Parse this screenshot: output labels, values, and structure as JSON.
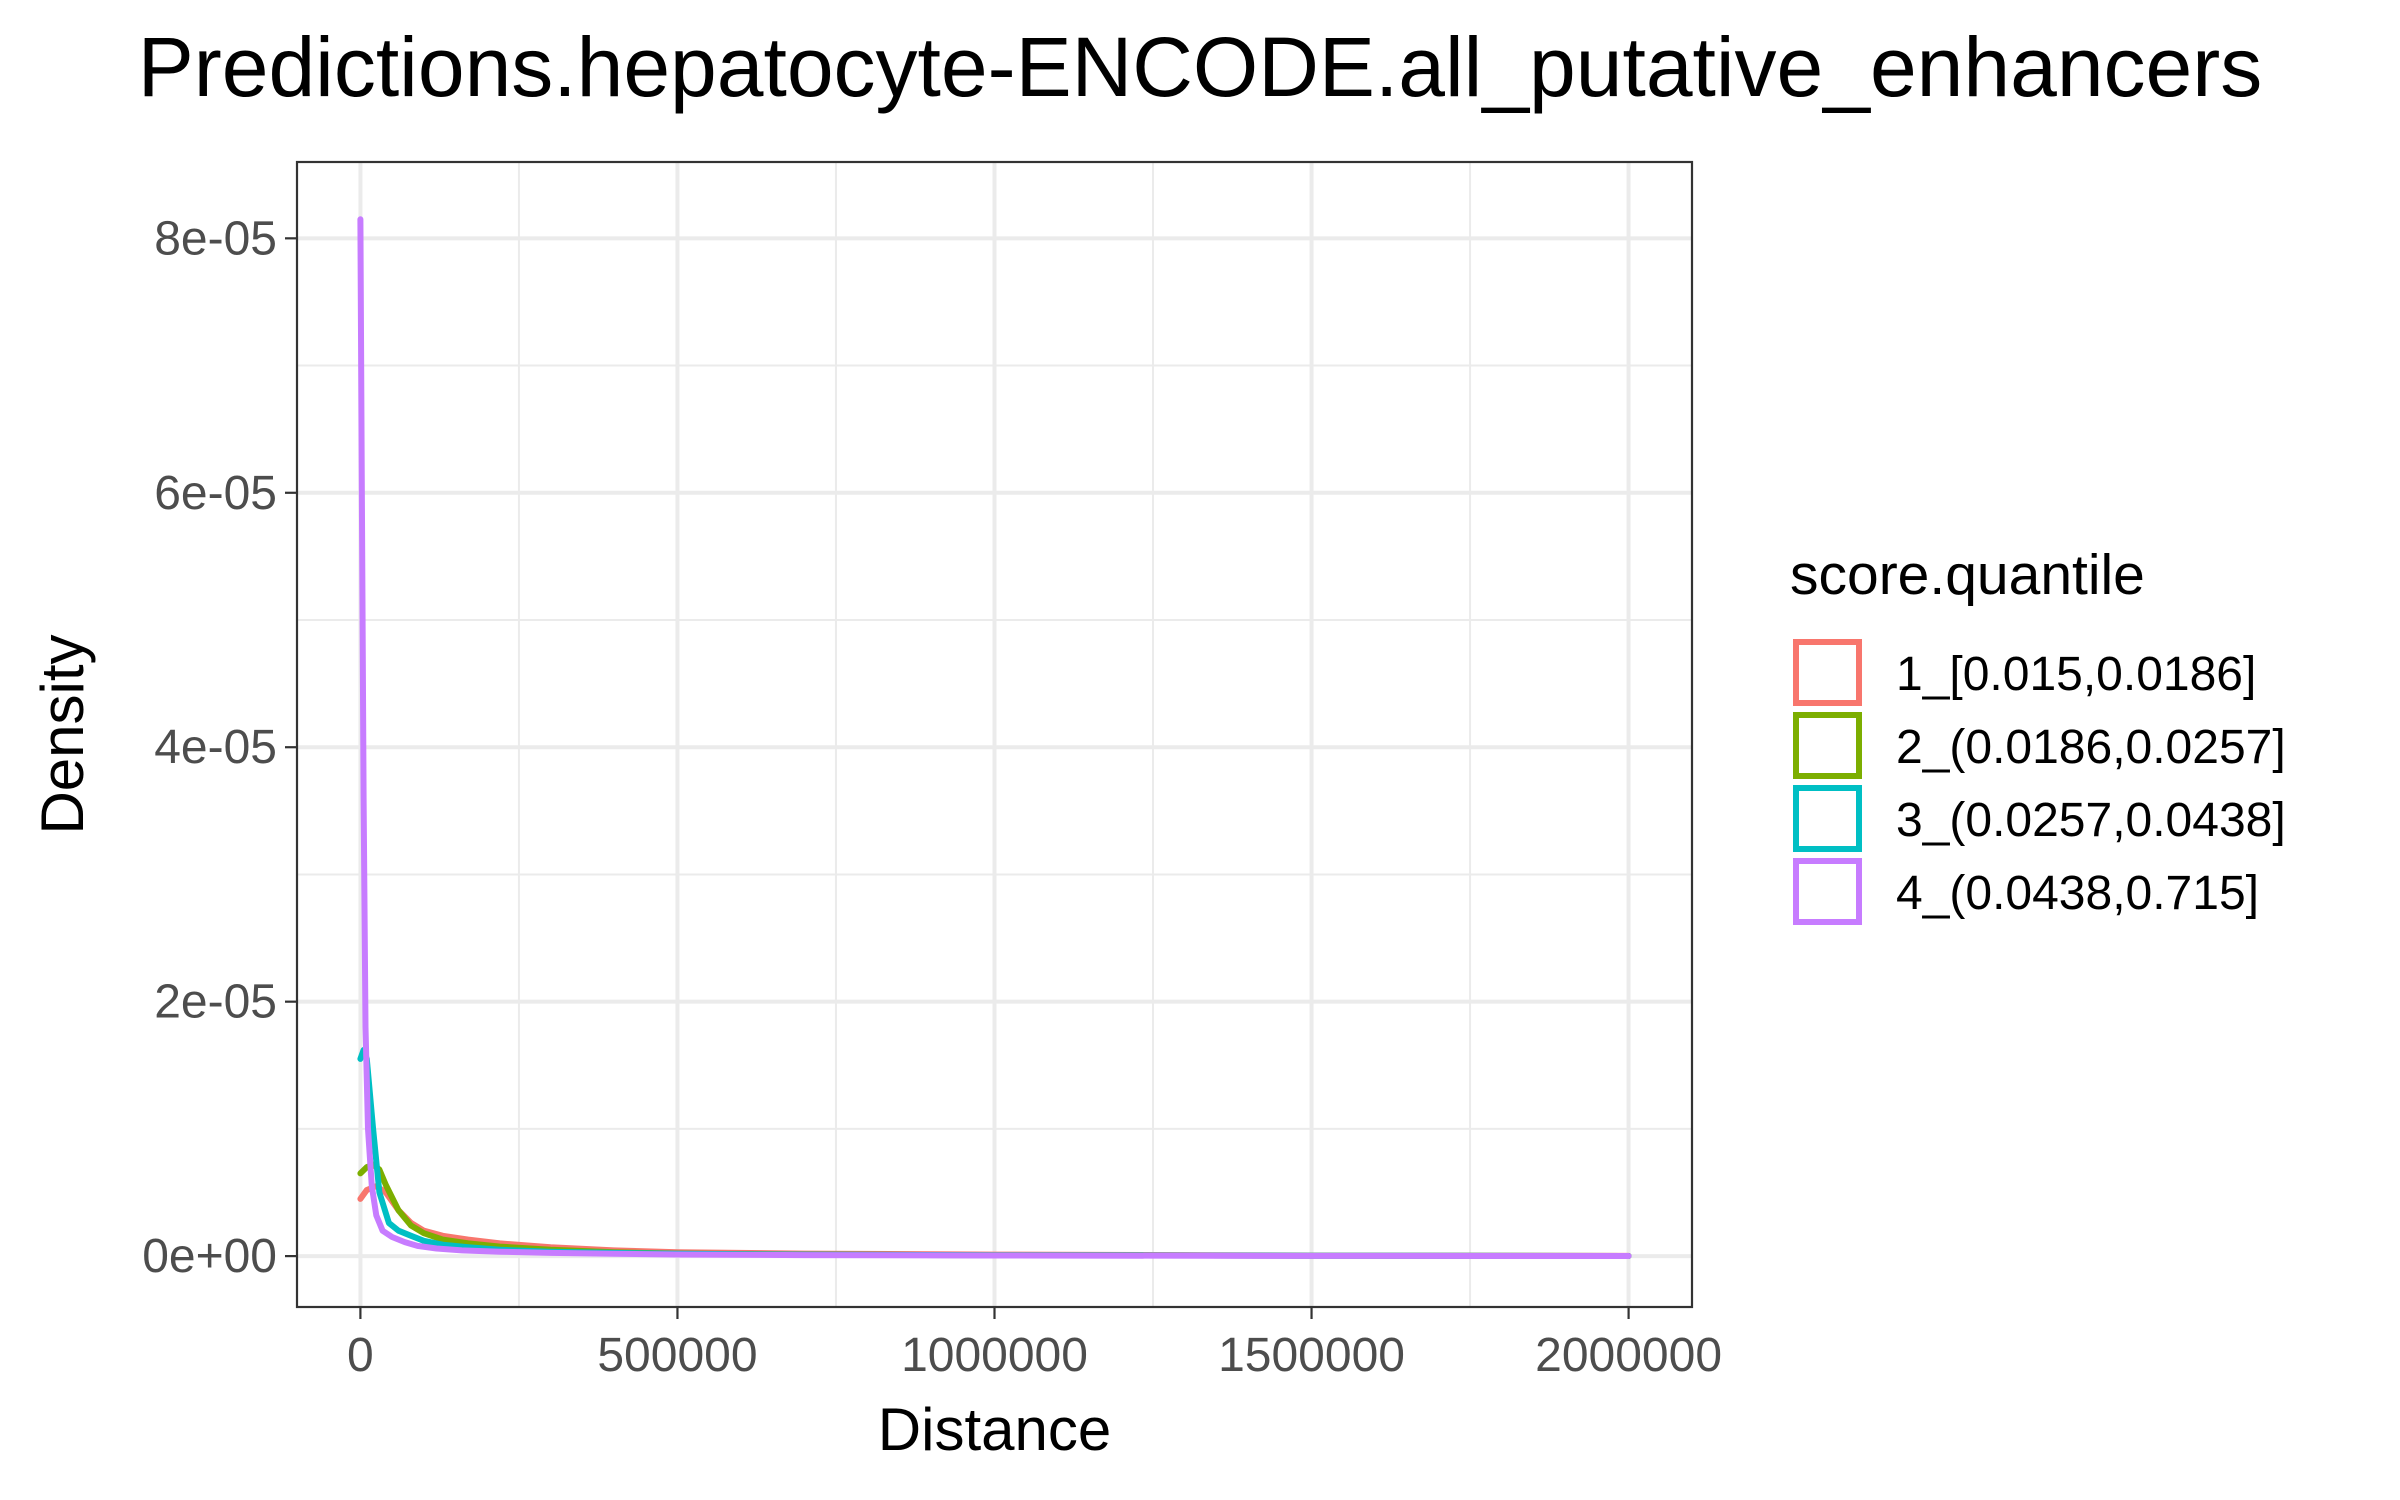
{
  "chart_data": {
    "type": "line",
    "title": "Predictions.hepatocyte-ENCODE.all_putative_enhancers",
    "xlabel": "Distance",
    "ylabel": "Density",
    "xlim": [
      -100000,
      2100000
    ],
    "ylim": [
      -4e-06,
      8.6e-05
    ],
    "x_ticks": [
      {
        "value": 0,
        "label": "0"
      },
      {
        "value": 500000,
        "label": "500000"
      },
      {
        "value": 1000000,
        "label": "1000000"
      },
      {
        "value": 1500000,
        "label": "1500000"
      },
      {
        "value": 2000000,
        "label": "2000000"
      }
    ],
    "y_ticks": [
      {
        "value": 0,
        "label": "0e+00"
      },
      {
        "value": 2e-05,
        "label": "2e-05"
      },
      {
        "value": 4e-05,
        "label": "4e-05"
      },
      {
        "value": 6e-05,
        "label": "6e-05"
      },
      {
        "value": 8e-05,
        "label": "8e-05"
      }
    ],
    "grid": true,
    "legend": {
      "title": "score.quantile",
      "position": "right"
    },
    "series": [
      {
        "name": "1_[0.015,0.0186]",
        "color": "#F8766D",
        "x": [
          0,
          10000,
          25000,
          40000,
          60000,
          80000,
          100000,
          130000,
          170000,
          220000,
          300000,
          400000,
          500000,
          700000,
          1000000,
          1500000,
          2000000
        ],
        "y": [
          4.5e-06,
          5.2e-06,
          5.5e-06,
          5e-06,
          3.6e-06,
          2.6e-06,
          2e-06,
          1.6e-06,
          1.3e-06,
          1e-06,
          7e-07,
          4.5e-07,
          3e-07,
          2e-07,
          1.2e-07,
          5e-08,
          2e-08
        ]
      },
      {
        "name": "2_(0.0186,0.0257]",
        "color": "#7CAE00",
        "x": [
          0,
          10000,
          20000,
          30000,
          40000,
          60000,
          80000,
          100000,
          130000,
          170000,
          220000,
          300000,
          400000,
          500000,
          700000,
          1000000,
          1500000,
          2000000
        ],
        "y": [
          6.5e-06,
          7e-06,
          7.2e-06,
          6.8e-06,
          5.6e-06,
          3.6e-06,
          2.4e-06,
          1.8e-06,
          1.3e-06,
          1e-06,
          7.5e-07,
          5e-07,
          3e-07,
          2e-07,
          1.2e-07,
          7e-08,
          3e-08,
          1e-08
        ]
      },
      {
        "name": "3_(0.0257,0.0438]",
        "color": "#00BFC4",
        "x": [
          0,
          5000,
          10000,
          20000,
          30000,
          45000,
          60000,
          80000,
          100000,
          130000,
          170000,
          220000,
          300000,
          400000,
          500000,
          700000,
          1000000,
          1500000,
          2000000
        ],
        "y": [
          1.55e-05,
          1.62e-05,
          1.55e-05,
          1e-05,
          5e-06,
          2.6e-06,
          2e-06,
          1.6e-06,
          1.2e-06,
          9e-07,
          7e-07,
          5e-07,
          3.5e-07,
          2.5e-07,
          1.8e-07,
          1.2e-07,
          7e-08,
          3e-08,
          1e-08
        ]
      },
      {
        "name": "4_(0.0438,0.715]",
        "color": "#C77CFF",
        "x": [
          0,
          2000,
          5000,
          8000,
          12000,
          18000,
          25000,
          35000,
          50000,
          70000,
          90000,
          120000,
          160000,
          220000,
          300000,
          400000,
          500000,
          700000,
          1000000,
          1500000,
          2000000
        ],
        "y": [
          8.15e-05,
          6.2e-05,
          3.6e-05,
          1.8e-05,
          1e-05,
          5.5e-06,
          3.2e-06,
          2e-06,
          1.5e-06,
          1.1e-06,
          8e-07,
          6e-07,
          4.5e-07,
          3.5e-07,
          2.5e-07,
          1.8e-07,
          1.3e-07,
          8e-08,
          5e-08,
          2e-08,
          1e-08
        ]
      }
    ]
  }
}
